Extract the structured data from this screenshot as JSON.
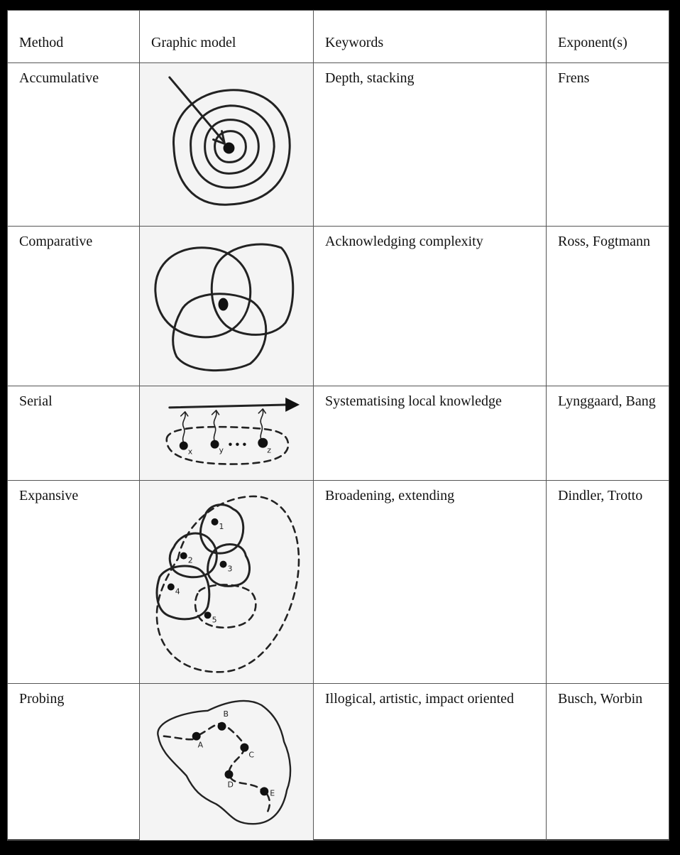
{
  "headers": {
    "method": "Method",
    "graphic_model": "Graphic model",
    "keywords": "Keywords",
    "exponents": "Exponent(s)"
  },
  "rows": [
    {
      "method": "Accumulative",
      "keywords": "Depth, stacking",
      "exponents": "Frens",
      "sketch_icon": "concentric-circles-icon"
    },
    {
      "method": "Comparative",
      "keywords": "Acknowledging complexity",
      "exponents": "Ross, Fogtmann",
      "sketch_icon": "overlapping-circles-icon"
    },
    {
      "method": "Serial",
      "keywords": "Systematising local knowledge",
      "exponents": "Lynggaard, Bang",
      "sketch_icon": "serial-arrow-icon"
    },
    {
      "method": "Expansive",
      "keywords": "Broadening, extending",
      "exponents": "Dindler, Trotto",
      "sketch_icon": "expanding-regions-icon"
    },
    {
      "method": "Probing",
      "keywords": "Illogical, artistic, impact oriented",
      "exponents": "Busch, Worbin",
      "sketch_icon": "probing-path-icon"
    }
  ],
  "sketch_labels": {
    "serial": [
      "x",
      "y",
      "z"
    ],
    "expansive": [
      "1",
      "2",
      "3",
      "4",
      "5"
    ],
    "probing": [
      "A",
      "B",
      "C",
      "D",
      "E"
    ]
  }
}
